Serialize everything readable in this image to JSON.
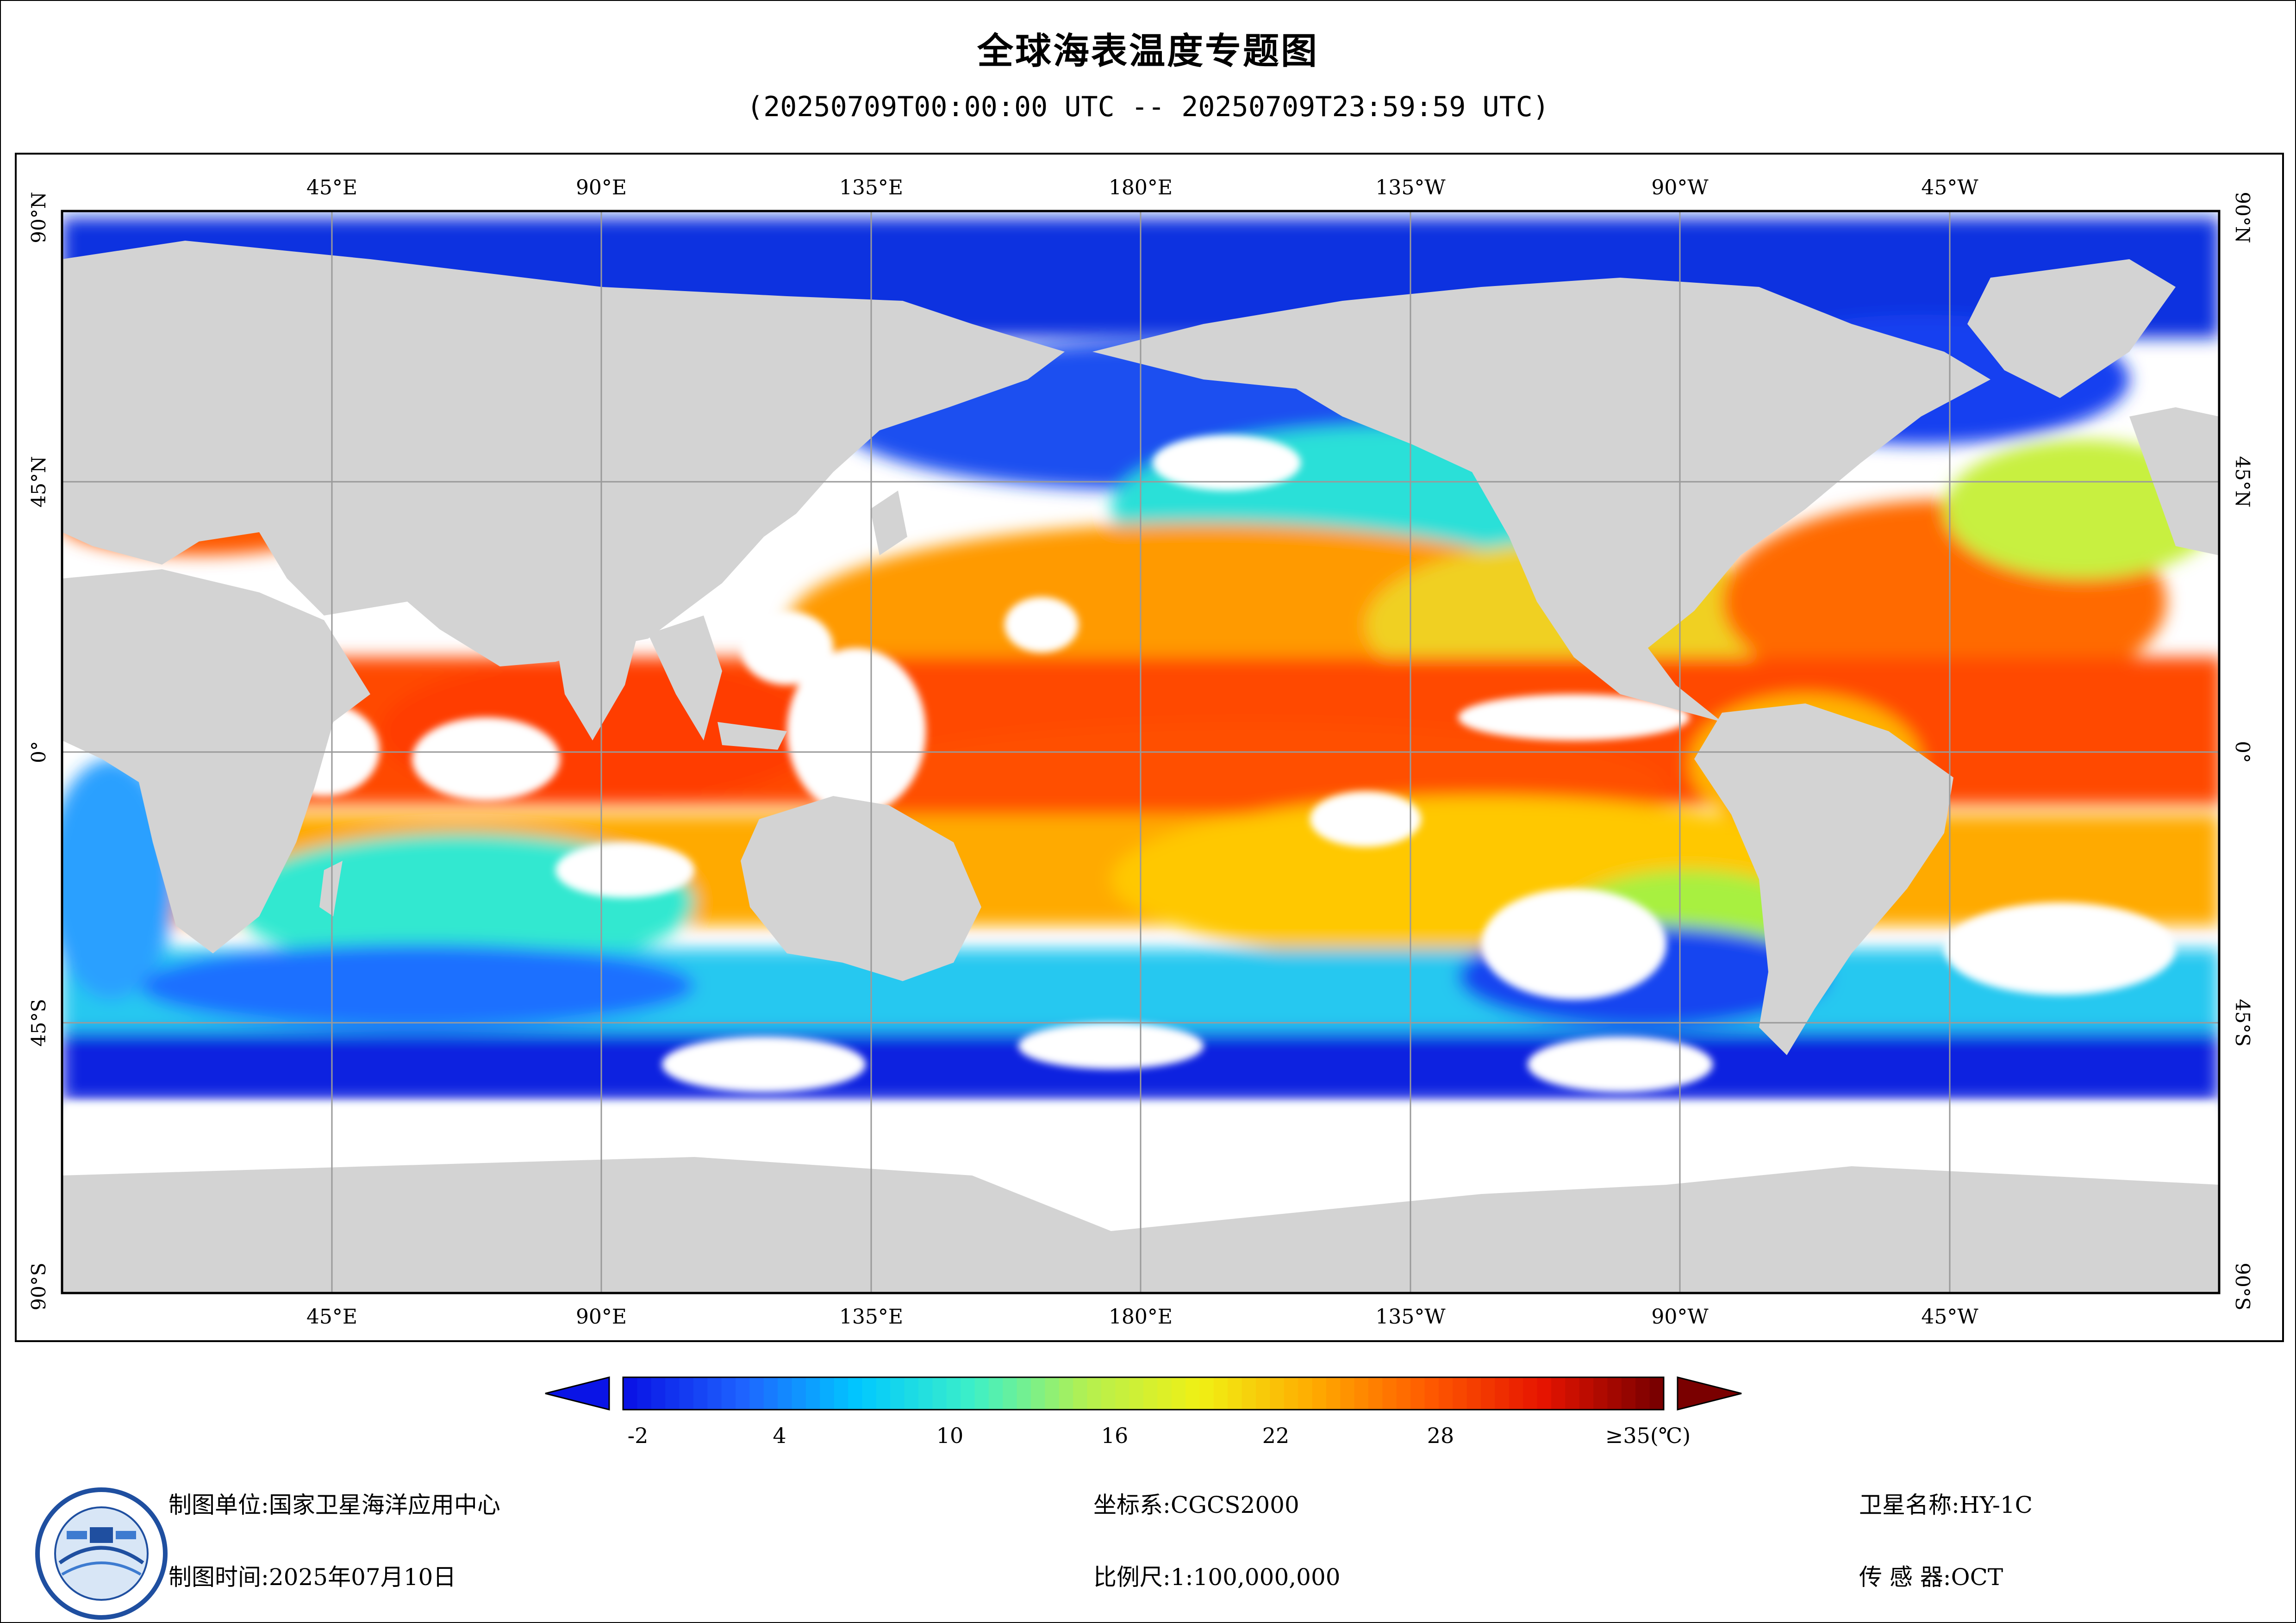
{
  "title": "全球海表温度专题图",
  "subtitle": "(20250709T00:00:00 UTC -- 20250709T23:59:59 UTC)",
  "map": {
    "lon_labels_top": [
      "45°E",
      "90°E",
      "135°E",
      "180°E",
      "135°W",
      "90°W",
      "45°W"
    ],
    "lon_labels_bottom": [
      "45°E",
      "90°E",
      "135°E",
      "180°E",
      "135°W",
      "90°W",
      "45°W"
    ],
    "lat_labels_left": [
      "90°N",
      "45°N",
      "0°",
      "45°S",
      "90°S"
    ],
    "lat_labels_right": [
      "90°N",
      "45°N",
      "0°",
      "45°S",
      "90°S"
    ],
    "land_color": "#d3d3d3",
    "nodata_color": "#ffffff"
  },
  "colorbar": {
    "tick_labels": [
      "-2",
      "4",
      "10",
      "16",
      "22",
      "28",
      "≥35(℃)"
    ],
    "min": -2,
    "max": 35,
    "colors": [
      "#0a14e6",
      "#1e64ff",
      "#00c8ff",
      "#3cf0c8",
      "#b4f050",
      "#f0f014",
      "#ffaa00",
      "#ff5a00",
      "#e61400",
      "#7a0000"
    ]
  },
  "footer": {
    "unit_label": "制图单位:国家卫星海洋应用中心",
    "time_label": "制图时间:2025年07月10日",
    "coord_label": "坐标系:CGCS2000",
    "scale_label": "比例尺:1:100,000,000",
    "satellite_label": "卫星名称:HY-1C",
    "sensor_label": "传 感 器:OCT"
  }
}
